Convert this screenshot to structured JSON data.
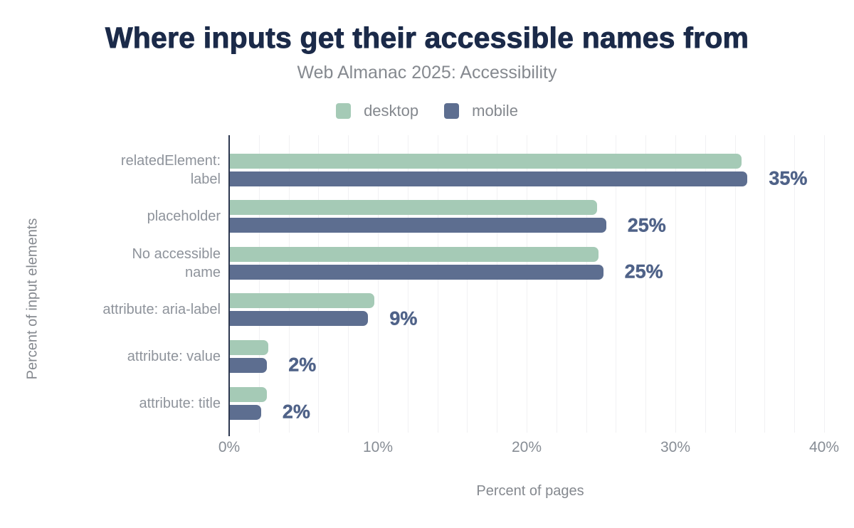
{
  "title": "Where inputs get their accessible names from",
  "subtitle": "Web Almanac 2025: Accessibility",
  "legend": [
    {
      "label": "desktop",
      "color": "#a5cab6"
    },
    {
      "label": "mobile",
      "color": "#5d6e90"
    }
  ],
  "colors": {
    "title_text": "#1b2a49",
    "muted_text": "#85898f",
    "category_text": "#8e939b",
    "tick_text": "#878d95",
    "data_label_text": "#4f6288",
    "axis_line": "#2d3850",
    "gridline": "#f1f1f3",
    "background": "#ffffff",
    "desktop_bar": "#a5cab6",
    "mobile_bar": "#5d6e90"
  },
  "chart_data": {
    "type": "bar",
    "orientation": "horizontal",
    "title": "Where inputs get their accessible names from",
    "subtitle": "Web Almanac 2025: Accessibility",
    "xlabel": "Percent of pages",
    "ylabel": "Percent of input elements",
    "xlim": [
      0,
      40
    ],
    "x_ticks": [
      "0%",
      "10%",
      "20%",
      "30%",
      "40%"
    ],
    "grid": "vertical gridlines every 2%",
    "legend_position": "top",
    "categories": [
      "relatedElement: label",
      "placeholder",
      "No accessible name",
      "attribute: aria-label",
      "attribute: value",
      "attribute: title"
    ],
    "categories_lines": [
      [
        "relatedElement:",
        "label"
      ],
      [
        "placeholder"
      ],
      [
        "No accessible",
        "name"
      ],
      [
        "attribute: aria-label"
      ],
      [
        "attribute: value"
      ],
      [
        "attribute: title"
      ]
    ],
    "series": [
      {
        "name": "desktop",
        "color": "#a5cab6",
        "values": [
          34.4,
          24.7,
          24.8,
          9.7,
          2.6,
          2.5
        ]
      },
      {
        "name": "mobile",
        "color": "#5d6e90",
        "values": [
          34.8,
          25.3,
          25.1,
          9.3,
          2.5,
          2.1
        ]
      }
    ],
    "annotations": [
      "35%",
      "25%",
      "25%",
      "9%",
      "2%",
      "2%"
    ]
  }
}
